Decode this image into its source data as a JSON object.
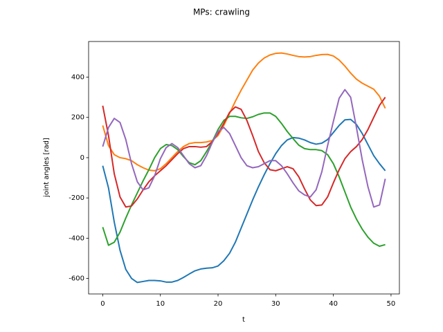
{
  "chart_data": {
    "type": "line",
    "title": "MPs: crawling",
    "x_label": "t",
    "y_label": "joint angles [rad]",
    "x": [
      0,
      1,
      2,
      3,
      4,
      5,
      6,
      7,
      8,
      9,
      10,
      11,
      12,
      13,
      14,
      15,
      16,
      17,
      18,
      19,
      20,
      21,
      22,
      23,
      24,
      25,
      26,
      27,
      28,
      29,
      30,
      31,
      32,
      33,
      34,
      35,
      36,
      37,
      38,
      39,
      40,
      41,
      42,
      43,
      44,
      45,
      46,
      47,
      48,
      49
    ],
    "xlim": [
      -2.45,
      51.45
    ],
    "xticks": [
      0,
      10,
      20,
      30,
      40,
      50
    ],
    "ylim": [
      -677,
      577
    ],
    "yticks": [
      -600,
      -400,
      -200,
      0,
      200,
      400
    ],
    "series": [
      {
        "color": "#1f77b4",
        "values": [
          -40,
          -150,
          -320,
          -460,
          -555,
          -600,
          -620,
          -615,
          -610,
          -610,
          -612,
          -618,
          -618,
          -610,
          -595,
          -578,
          -562,
          -553,
          -549,
          -547,
          -538,
          -512,
          -475,
          -420,
          -350,
          -280,
          -210,
          -145,
          -85,
          -30,
          20,
          60,
          88,
          100,
          97,
          88,
          75,
          67,
          72,
          90,
          125,
          160,
          188,
          190,
          165,
          120,
          65,
          10,
          -30,
          -65
        ]
      },
      {
        "color": "#ff7f0e",
        "values": [
          160,
          60,
          15,
          0,
          -5,
          -15,
          -35,
          -50,
          -62,
          -65,
          -55,
          -30,
          0,
          30,
          55,
          70,
          75,
          75,
          78,
          85,
          110,
          160,
          220,
          280,
          335,
          385,
          435,
          470,
          495,
          510,
          518,
          520,
          515,
          508,
          502,
          500,
          502,
          508,
          512,
          513,
          505,
          485,
          455,
          420,
          390,
          370,
          355,
          340,
          305,
          245
        ]
      },
      {
        "color": "#2ca02c",
        "values": [
          -345,
          -435,
          -420,
          -370,
          -300,
          -235,
          -175,
          -115,
          -60,
          0,
          45,
          65,
          60,
          40,
          5,
          -25,
          -35,
          -15,
          30,
          80,
          140,
          185,
          205,
          205,
          198,
          195,
          203,
          215,
          222,
          222,
          205,
          170,
          130,
          95,
          62,
          45,
          40,
          40,
          35,
          15,
          -30,
          -95,
          -170,
          -245,
          -305,
          -355,
          -395,
          -425,
          -440,
          -432
        ]
      },
      {
        "color": "#d62728",
        "values": [
          258,
          110,
          -80,
          -195,
          -245,
          -240,
          -205,
          -160,
          -120,
          -90,
          -65,
          -40,
          -10,
          20,
          45,
          55,
          55,
          52,
          55,
          80,
          120,
          170,
          225,
          252,
          240,
          185,
          110,
          30,
          -25,
          -60,
          -65,
          -55,
          -45,
          -55,
          -95,
          -155,
          -210,
          -238,
          -235,
          -195,
          -125,
          -60,
          -5,
          30,
          55,
          90,
          140,
          200,
          260,
          300
        ]
      },
      {
        "color": "#9467bd",
        "values": [
          55,
          150,
          195,
          175,
          90,
          -30,
          -120,
          -160,
          -150,
          -90,
          -5,
          50,
          70,
          50,
          10,
          -30,
          -50,
          -40,
          10,
          75,
          130,
          150,
          120,
          60,
          0,
          -40,
          -50,
          -45,
          -30,
          -15,
          -15,
          -40,
          -80,
          -125,
          -165,
          -185,
          -195,
          -160,
          -70,
          60,
          180,
          295,
          338,
          300,
          150,
          -10,
          -145,
          -245,
          -235,
          -105
        ]
      }
    ]
  }
}
